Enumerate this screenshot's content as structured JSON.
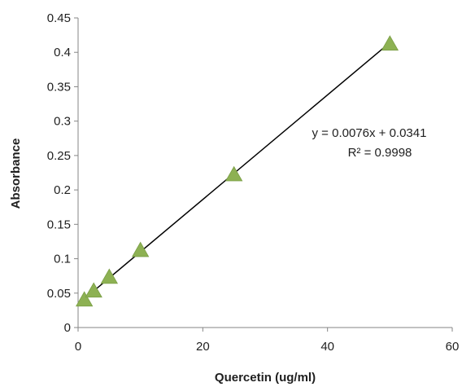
{
  "chart_data": {
    "type": "scatter",
    "title": "",
    "xlabel": "Quercetin (ug/ml)",
    "ylabel": "Absorbance",
    "xlim": [
      0,
      60
    ],
    "ylim": [
      0,
      0.45
    ],
    "x_ticks": [
      "0",
      "20",
      "40",
      "60"
    ],
    "y_ticks": [
      "0",
      "0.05",
      "0.1",
      "0.15",
      "0.2",
      "0.25",
      "0.3",
      "0.35",
      "0.4",
      "0.45"
    ],
    "grid": false,
    "legend": "none",
    "series": [
      {
        "marker": "triangle",
        "color": "#8db153",
        "points": [
          {
            "x": 1,
            "y": 0.04
          },
          {
            "x": 2.5,
            "y": 0.053
          },
          {
            "x": 5,
            "y": 0.073
          },
          {
            "x": 10,
            "y": 0.112
          },
          {
            "x": 25,
            "y": 0.222
          },
          {
            "x": 50,
            "y": 0.412
          }
        ]
      }
    ],
    "trendline": {
      "type": "linear",
      "slope": 0.0076,
      "intercept": 0.0341,
      "x_range": [
        1,
        50
      ],
      "color": "#000000",
      "equation": "y = 0.0076x + 0.0341",
      "r_squared": "R² = 0.9998"
    }
  }
}
